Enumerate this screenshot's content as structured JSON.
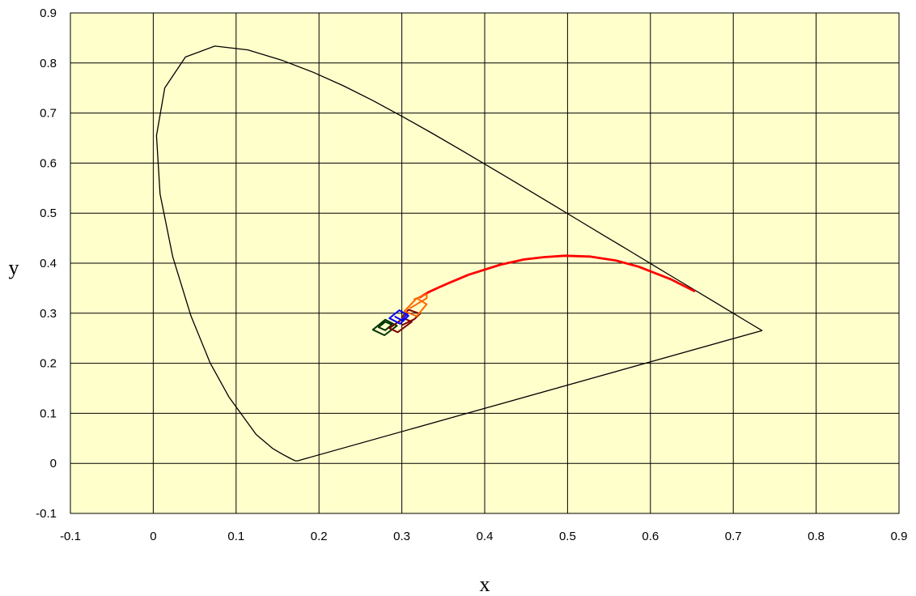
{
  "chart_data": {
    "type": "line",
    "title": "",
    "xlabel": "x",
    "ylabel": "y",
    "xlim": [
      -0.1,
      0.9
    ],
    "ylim": [
      -0.1,
      0.9
    ],
    "x_ticks": [
      "-0.1",
      "0",
      "0.1",
      "0.2",
      "0.3",
      "0.4",
      "0.5",
      "0.6",
      "0.7",
      "0.8",
      "0.9"
    ],
    "y_ticks": [
      "0.9",
      "0.8",
      "0.7",
      "0.6",
      "0.5",
      "0.4",
      "0.3",
      "0.2",
      "0.1",
      "0",
      "-0.1"
    ],
    "grid": true,
    "colors": {
      "plot_background": "#FFFFCC",
      "grid": "#000000",
      "spectral_locus": "#000000",
      "planckian_locus": "#FF0000",
      "region_green": "#003300",
      "region_darkred": "#800000",
      "region_blue": "#0000FF",
      "region_orange": "#FF6600"
    },
    "series": [
      {
        "key": "spectral_locus",
        "points": [
          [
            0.1741,
            0.005
          ],
          [
            0.1733,
            0.0048
          ],
          [
            0.1714,
            0.0051
          ],
          [
            0.1689,
            0.0069
          ],
          [
            0.1644,
            0.0109
          ],
          [
            0.1566,
            0.0177
          ],
          [
            0.144,
            0.0297
          ],
          [
            0.1241,
            0.0578
          ],
          [
            0.0913,
            0.1327
          ],
          [
            0.0687,
            0.2007
          ],
          [
            0.0454,
            0.295
          ],
          [
            0.0235,
            0.4127
          ],
          [
            0.0082,
            0.5384
          ],
          [
            0.0039,
            0.6548
          ],
          [
            0.0139,
            0.7502
          ],
          [
            0.0389,
            0.812
          ],
          [
            0.0743,
            0.8338
          ],
          [
            0.1142,
            0.8262
          ],
          [
            0.1547,
            0.8059
          ],
          [
            0.1929,
            0.7816
          ],
          [
            0.2296,
            0.7543
          ],
          [
            0.2658,
            0.7243
          ],
          [
            0.3016,
            0.6923
          ],
          [
            0.3373,
            0.6589
          ],
          [
            0.3731,
            0.6245
          ],
          [
            0.4087,
            0.5896
          ],
          [
            0.4441,
            0.5547
          ],
          [
            0.4788,
            0.5202
          ],
          [
            0.5125,
            0.4866
          ],
          [
            0.5448,
            0.4544
          ],
          [
            0.5752,
            0.4242
          ],
          [
            0.6029,
            0.3965
          ],
          [
            0.627,
            0.3725
          ],
          [
            0.6482,
            0.3514
          ],
          [
            0.6658,
            0.334
          ],
          [
            0.6801,
            0.3197
          ],
          [
            0.6915,
            0.3083
          ],
          [
            0.7006,
            0.2993
          ],
          [
            0.714,
            0.2859
          ],
          [
            0.7347,
            0.2653
          ],
          [
            0.1741,
            0.005
          ]
        ]
      },
      {
        "key": "planckian_locus",
        "points": [
          [
            0.6528,
            0.3444
          ],
          [
            0.6251,
            0.3674
          ],
          [
            0.5857,
            0.3931
          ],
          [
            0.5586,
            0.4052
          ],
          [
            0.5267,
            0.4133
          ],
          [
            0.4967,
            0.4149
          ],
          [
            0.4719,
            0.4122
          ],
          [
            0.4476,
            0.4074
          ],
          [
            0.4185,
            0.3967
          ],
          [
            0.3805,
            0.3768
          ],
          [
            0.3574,
            0.3608
          ],
          [
            0.3447,
            0.3516
          ],
          [
            0.3324,
            0.3422
          ],
          [
            0.3221,
            0.3318
          ]
        ]
      },
      {
        "key": "region_green",
        "points": [
          [
            0.265,
            0.267
          ],
          [
            0.279,
            0.256
          ],
          [
            0.294,
            0.275
          ],
          [
            0.28,
            0.287
          ],
          [
            0.265,
            0.267
          ]
        ]
      },
      {
        "key": "region_green",
        "points": [
          [
            0.272,
            0.272
          ],
          [
            0.28,
            0.266
          ],
          [
            0.288,
            0.277
          ],
          [
            0.28,
            0.283
          ],
          [
            0.272,
            0.272
          ]
        ]
      },
      {
        "key": "region_darkred",
        "points": [
          [
            0.285,
            0.27
          ],
          [
            0.295,
            0.262
          ],
          [
            0.312,
            0.283
          ],
          [
            0.302,
            0.29
          ],
          [
            0.285,
            0.27
          ]
        ]
      },
      {
        "key": "region_darkred",
        "points": [
          [
            0.3,
            0.276
          ],
          [
            0.315,
            0.288
          ],
          [
            0.322,
            0.299
          ],
          [
            0.308,
            0.307
          ],
          [
            0.3,
            0.292
          ]
        ]
      },
      {
        "key": "region_blue",
        "points": [
          [
            0.285,
            0.29
          ],
          [
            0.298,
            0.279
          ],
          [
            0.308,
            0.295
          ],
          [
            0.297,
            0.306
          ],
          [
            0.285,
            0.29
          ]
        ]
      },
      {
        "key": "region_blue",
        "points": [
          [
            0.292,
            0.293
          ],
          [
            0.3,
            0.286
          ],
          [
            0.307,
            0.3
          ]
        ]
      },
      {
        "key": "region_orange",
        "points": [
          [
            0.303,
            0.304
          ],
          [
            0.318,
            0.294
          ],
          [
            0.33,
            0.318
          ],
          [
            0.318,
            0.33
          ],
          [
            0.303,
            0.304
          ]
        ]
      },
      {
        "key": "region_orange",
        "points": [
          [
            0.31,
            0.31
          ],
          [
            0.33,
            0.33
          ],
          [
            0.33,
            0.338
          ],
          [
            0.315,
            0.328
          ]
        ]
      }
    ]
  }
}
